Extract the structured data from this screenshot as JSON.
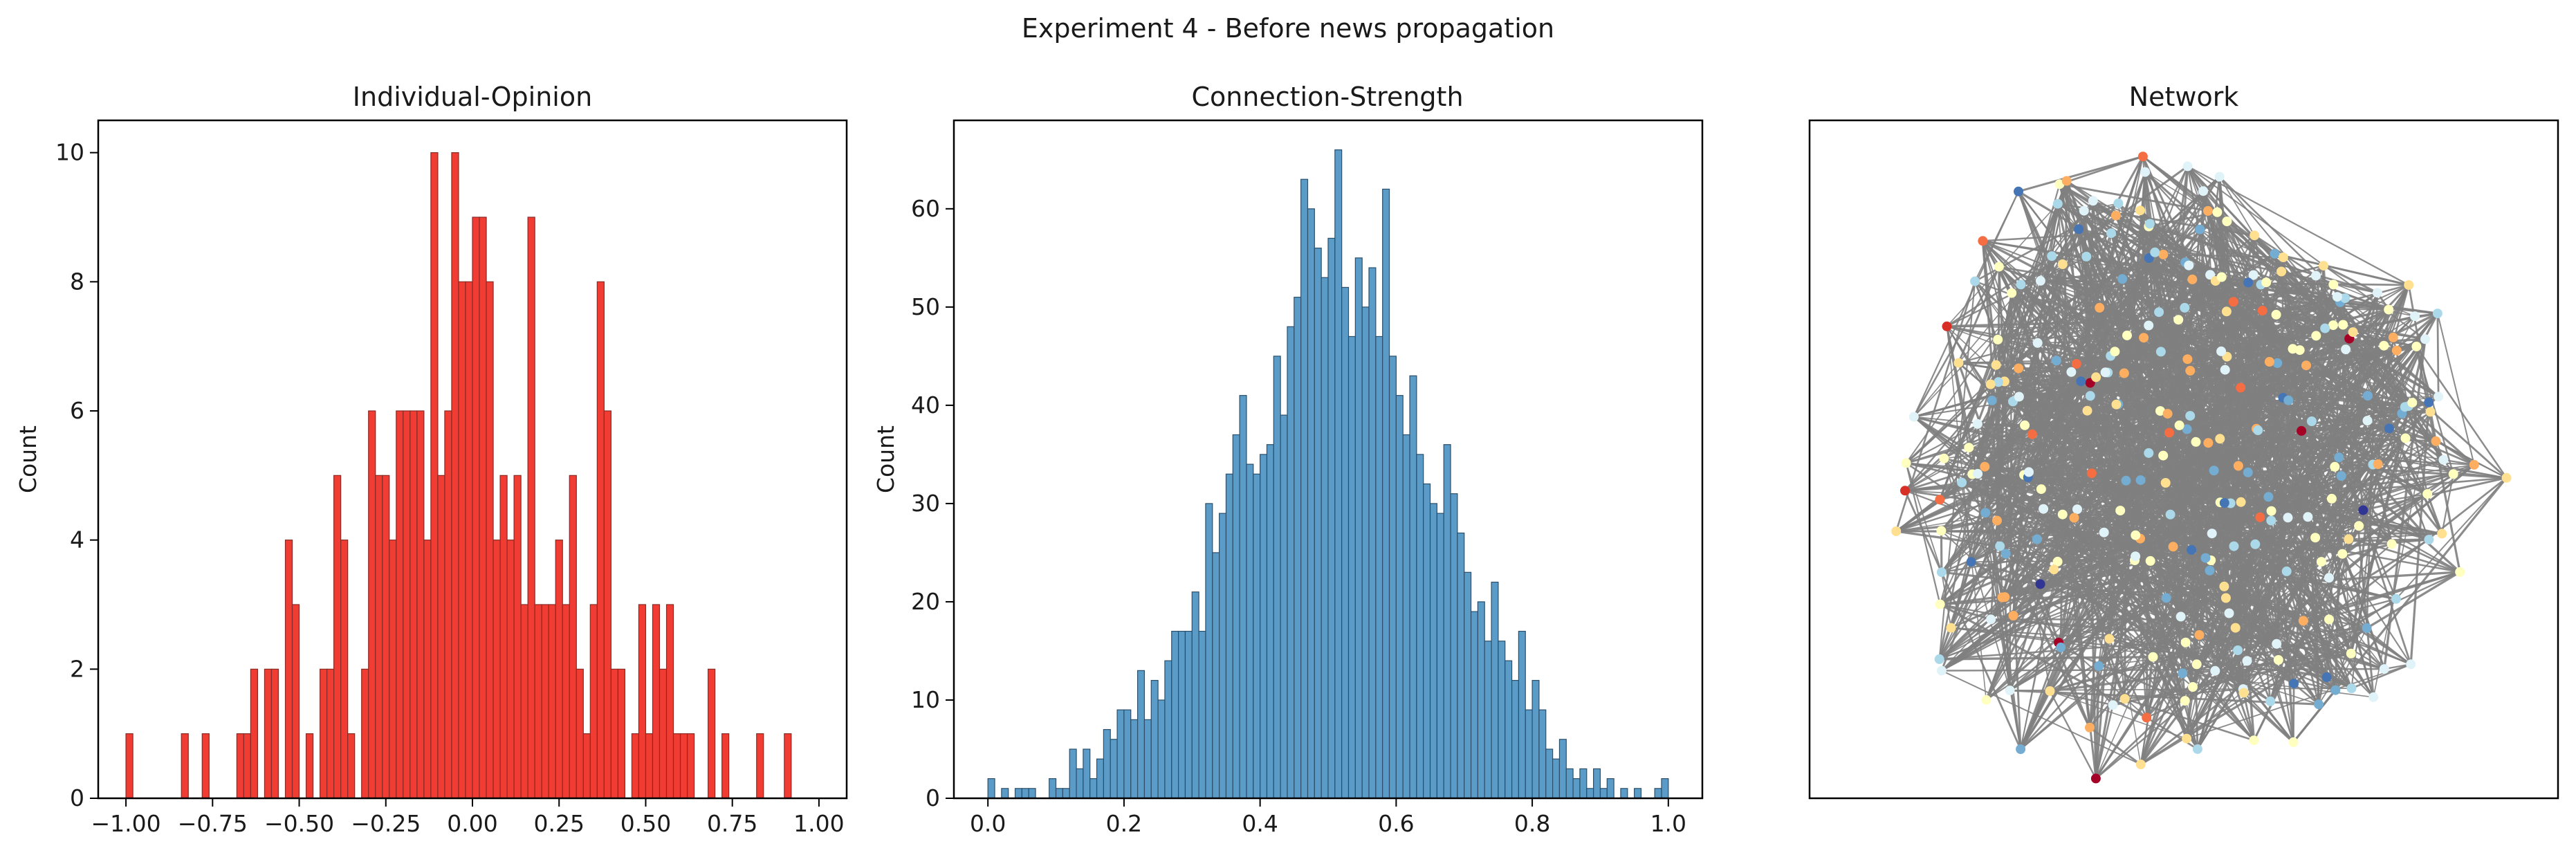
{
  "figure": {
    "suptitle": "Experiment 4 - Before news propagation"
  },
  "chart_data": [
    {
      "type": "bar",
      "title": "Individual-Opinion",
      "xlabel": "",
      "ylabel": "Count",
      "xlim": [
        -1.08,
        1.08
      ],
      "ylim": [
        0,
        10.5
      ],
      "bin_width": 0.02,
      "bar_color": "#f03c32",
      "bar_edge": "#8a2a24",
      "xticks": [
        -1.0,
        -0.75,
        -0.5,
        -0.25,
        0.0,
        0.25,
        0.5,
        0.75,
        1.0
      ],
      "xtick_labels": [
        "−1.00",
        "−0.75",
        "−0.50",
        "−0.25",
        "0.00",
        "0.25",
        "0.50",
        "0.75",
        "1.00"
      ],
      "yticks": [
        0,
        2,
        4,
        6,
        8,
        10
      ],
      "ytick_labels": [
        "0",
        "2",
        "4",
        "6",
        "8",
        "10"
      ],
      "bins": [
        [
          -0.99,
          1
        ],
        [
          -0.83,
          1
        ],
        [
          -0.77,
          1
        ],
        [
          -0.67,
          1
        ],
        [
          -0.65,
          1
        ],
        [
          -0.63,
          2
        ],
        [
          -0.59,
          2
        ],
        [
          -0.57,
          2
        ],
        [
          -0.53,
          4
        ],
        [
          -0.51,
          3
        ],
        [
          -0.47,
          1
        ],
        [
          -0.43,
          2
        ],
        [
          -0.41,
          2
        ],
        [
          -0.39,
          5
        ],
        [
          -0.37,
          4
        ],
        [
          -0.35,
          1
        ],
        [
          -0.31,
          2
        ],
        [
          -0.29,
          6
        ],
        [
          -0.27,
          5
        ],
        [
          -0.25,
          5
        ],
        [
          -0.23,
          4
        ],
        [
          -0.21,
          6
        ],
        [
          -0.19,
          6
        ],
        [
          -0.17,
          6
        ],
        [
          -0.15,
          6
        ],
        [
          -0.13,
          4
        ],
        [
          -0.11,
          10
        ],
        [
          -0.09,
          5
        ],
        [
          -0.07,
          6
        ],
        [
          -0.05,
          10
        ],
        [
          -0.03,
          8
        ],
        [
          -0.01,
          8
        ],
        [
          0.01,
          9
        ],
        [
          0.03,
          9
        ],
        [
          0.05,
          8
        ],
        [
          0.07,
          4
        ],
        [
          0.09,
          5
        ],
        [
          0.11,
          4
        ],
        [
          0.13,
          5
        ],
        [
          0.15,
          3
        ],
        [
          0.17,
          9
        ],
        [
          0.19,
          3
        ],
        [
          0.21,
          3
        ],
        [
          0.23,
          3
        ],
        [
          0.25,
          4
        ],
        [
          0.27,
          3
        ],
        [
          0.29,
          5
        ],
        [
          0.31,
          2
        ],
        [
          0.33,
          1
        ],
        [
          0.35,
          3
        ],
        [
          0.37,
          8
        ],
        [
          0.39,
          6
        ],
        [
          0.41,
          2
        ],
        [
          0.43,
          2
        ],
        [
          0.47,
          1
        ],
        [
          0.49,
          3
        ],
        [
          0.51,
          1
        ],
        [
          0.53,
          3
        ],
        [
          0.55,
          2
        ],
        [
          0.57,
          3
        ],
        [
          0.59,
          1
        ],
        [
          0.61,
          1
        ],
        [
          0.63,
          1
        ],
        [
          0.69,
          2
        ],
        [
          0.73,
          1
        ],
        [
          0.83,
          1
        ],
        [
          0.91,
          1
        ]
      ]
    },
    {
      "type": "bar",
      "title": "Connection-Strength",
      "xlabel": "",
      "ylabel": "Count",
      "xlim": [
        -0.05,
        1.05
      ],
      "ylim": [
        0,
        69
      ],
      "bin_width": 0.01,
      "bar_color": "#5a9bc8",
      "bar_edge": "#2c4f6a",
      "xticks": [
        0.0,
        0.2,
        0.4,
        0.6,
        0.8,
        1.0
      ],
      "xtick_labels": [
        "0.0",
        "0.2",
        "0.4",
        "0.6",
        "0.8",
        "1.0"
      ],
      "yticks": [
        0,
        10,
        20,
        30,
        40,
        50,
        60
      ],
      "ytick_labels": [
        "0",
        "10",
        "20",
        "30",
        "40",
        "50",
        "60"
      ],
      "bins": [
        [
          0.005,
          2
        ],
        [
          0.015,
          0
        ],
        [
          0.025,
          1
        ],
        [
          0.035,
          0
        ],
        [
          0.045,
          1
        ],
        [
          0.055,
          1
        ],
        [
          0.065,
          1
        ],
        [
          0.075,
          0
        ],
        [
          0.085,
          0
        ],
        [
          0.095,
          2
        ],
        [
          0.105,
          1
        ],
        [
          0.115,
          1
        ],
        [
          0.125,
          5
        ],
        [
          0.135,
          3
        ],
        [
          0.145,
          5
        ],
        [
          0.155,
          2
        ],
        [
          0.165,
          4
        ],
        [
          0.175,
          7
        ],
        [
          0.185,
          6
        ],
        [
          0.195,
          9
        ],
        [
          0.205,
          9
        ],
        [
          0.215,
          8
        ],
        [
          0.225,
          13
        ],
        [
          0.235,
          8
        ],
        [
          0.245,
          12
        ],
        [
          0.255,
          10
        ],
        [
          0.265,
          14
        ],
        [
          0.275,
          17
        ],
        [
          0.285,
          17
        ],
        [
          0.295,
          17
        ],
        [
          0.305,
          21
        ],
        [
          0.315,
          17
        ],
        [
          0.325,
          30
        ],
        [
          0.335,
          25
        ],
        [
          0.345,
          29
        ],
        [
          0.355,
          33
        ],
        [
          0.365,
          37
        ],
        [
          0.375,
          41
        ],
        [
          0.385,
          34
        ],
        [
          0.395,
          33
        ],
        [
          0.405,
          35
        ],
        [
          0.415,
          36
        ],
        [
          0.425,
          45
        ],
        [
          0.435,
          39
        ],
        [
          0.445,
          48
        ],
        [
          0.455,
          51
        ],
        [
          0.465,
          63
        ],
        [
          0.475,
          60
        ],
        [
          0.485,
          56
        ],
        [
          0.495,
          53
        ],
        [
          0.505,
          57
        ],
        [
          0.515,
          66
        ],
        [
          0.525,
          52
        ],
        [
          0.535,
          47
        ],
        [
          0.545,
          55
        ],
        [
          0.555,
          50
        ],
        [
          0.565,
          54
        ],
        [
          0.575,
          47
        ],
        [
          0.585,
          62
        ],
        [
          0.595,
          45
        ],
        [
          0.605,
          41
        ],
        [
          0.615,
          37
        ],
        [
          0.625,
          43
        ],
        [
          0.635,
          35
        ],
        [
          0.645,
          32
        ],
        [
          0.655,
          30
        ],
        [
          0.665,
          29
        ],
        [
          0.675,
          36
        ],
        [
          0.685,
          31
        ],
        [
          0.695,
          27
        ],
        [
          0.705,
          23
        ],
        [
          0.715,
          19
        ],
        [
          0.725,
          20
        ],
        [
          0.735,
          16
        ],
        [
          0.745,
          22
        ],
        [
          0.755,
          16
        ],
        [
          0.765,
          14
        ],
        [
          0.775,
          12
        ],
        [
          0.785,
          17
        ],
        [
          0.795,
          9
        ],
        [
          0.805,
          12
        ],
        [
          0.815,
          9
        ],
        [
          0.825,
          5
        ],
        [
          0.835,
          4
        ],
        [
          0.845,
          6
        ],
        [
          0.855,
          3
        ],
        [
          0.865,
          2
        ],
        [
          0.875,
          3
        ],
        [
          0.885,
          1
        ],
        [
          0.895,
          3
        ],
        [
          0.905,
          1
        ],
        [
          0.915,
          2
        ],
        [
          0.925,
          0
        ],
        [
          0.935,
          1
        ],
        [
          0.945,
          0
        ],
        [
          0.955,
          1
        ],
        [
          0.965,
          0
        ],
        [
          0.975,
          0
        ],
        [
          0.985,
          1
        ],
        [
          0.995,
          2
        ]
      ]
    },
    {
      "type": "network",
      "title": "Network",
      "node_count": 300,
      "edge_color": "#7f7f7f",
      "node_palette": [
        "#313695",
        "#4575b4",
        "#74add1",
        "#abd9e9",
        "#e0f3f8",
        "#ffffbf",
        "#fee090",
        "#fdae61",
        "#f46d43",
        "#d73027",
        "#a50026"
      ]
    }
  ]
}
